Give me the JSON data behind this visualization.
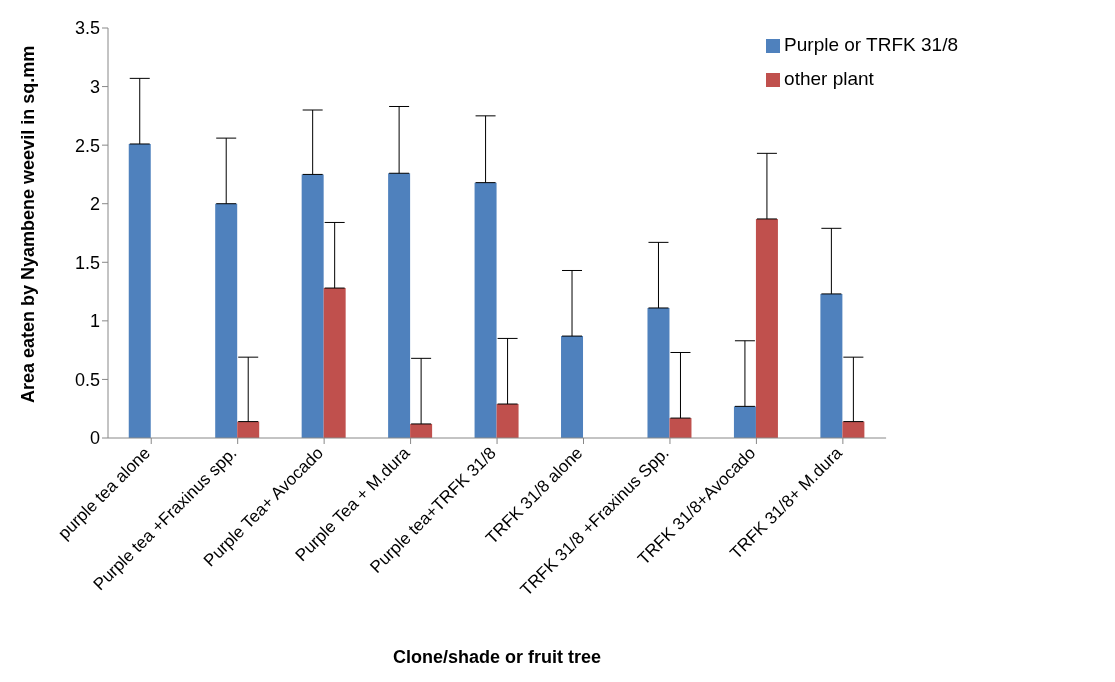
{
  "chart_data": {
    "type": "bar",
    "xlabel": "Clone/shade or fruit tree",
    "ylabel": "Area eaten by Nyambene weevil in sq.mm",
    "categories": [
      "purple tea alone",
      "Purple tea +Fraxinus spp.",
      "Purple Tea+ Avocado",
      "Purple Tea + M.dura",
      "Purple tea+TRFK 31/8",
      "TRFK 31/8 alone",
      "TRFK 31/8 +Fraxinus Spp.",
      "TRFK 31/8+Avocado",
      "TRFK 31/8+ M.dura"
    ],
    "series": [
      {
        "name": "Purple or TRFK 31/8",
        "color": "#4f81bd",
        "values": [
          2.51,
          2.0,
          2.25,
          2.26,
          2.18,
          0.87,
          1.11,
          0.27,
          1.23
        ],
        "errors": [
          [
            2.51,
            3.07
          ],
          [
            2.0,
            2.56
          ],
          [
            2.25,
            2.8
          ],
          [
            2.26,
            2.83
          ],
          [
            2.18,
            2.75
          ],
          [
            0.87,
            1.43
          ],
          [
            1.11,
            1.67
          ],
          [
            0.27,
            0.83
          ],
          [
            1.23,
            1.79
          ]
        ]
      },
      {
        "name": "other plant",
        "color": "#c0504d",
        "values": [
          0,
          0.14,
          1.28,
          0.12,
          0.29,
          0,
          0.17,
          1.87,
          0.14
        ],
        "errors": [
          null,
          [
            0.14,
            0.69
          ],
          [
            1.28,
            1.84
          ],
          [
            0.12,
            0.68
          ],
          [
            0.29,
            0.85
          ],
          null,
          [
            0.17,
            0.73
          ],
          [
            1.87,
            2.43
          ],
          [
            0.14,
            0.69
          ]
        ]
      }
    ],
    "ylim": [
      0,
      3.5
    ],
    "yticks": [
      0,
      0.5,
      1,
      1.5,
      2,
      2.5,
      3,
      3.5
    ],
    "grid": false,
    "legend": "top right"
  }
}
